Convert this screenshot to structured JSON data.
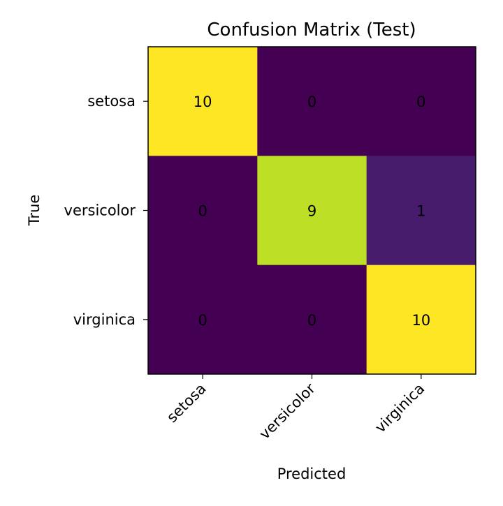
{
  "chart_data": {
    "type": "heatmap",
    "title": "Confusion Matrix (Test)",
    "xlabel": "Predicted",
    "ylabel": "True",
    "x_categories": [
      "setosa",
      "versicolor",
      "virginica"
    ],
    "y_categories": [
      "setosa",
      "versicolor",
      "virginica"
    ],
    "values": [
      [
        10,
        0,
        0
      ],
      [
        0,
        9,
        1
      ],
      [
        0,
        0,
        10
      ]
    ],
    "colormap": "viridis",
    "value_range": [
      0,
      10
    ]
  }
}
